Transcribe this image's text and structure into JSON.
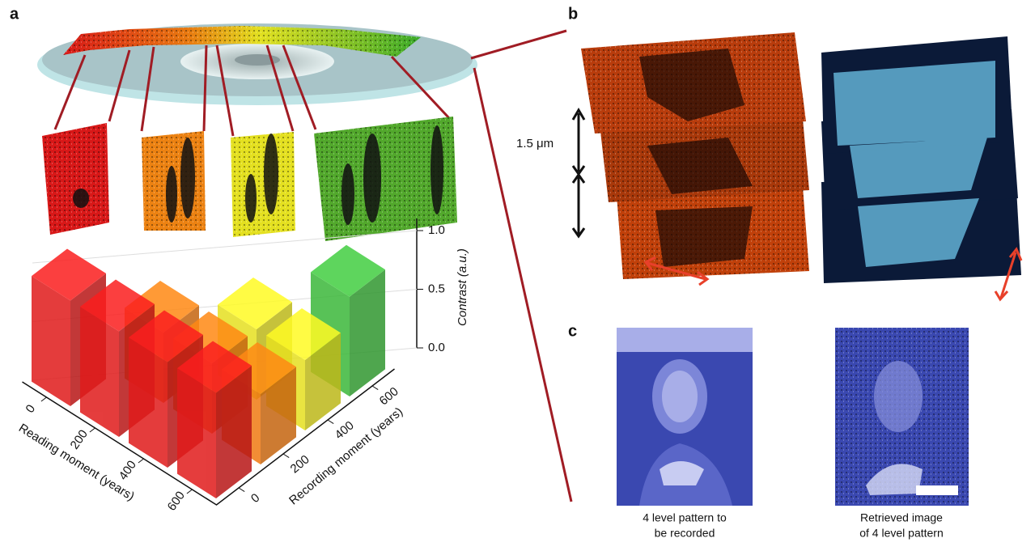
{
  "panels": {
    "a": "a",
    "b": "b",
    "c": "c"
  },
  "chart_data": {
    "type": "bar3d",
    "xlabel": "Reading moment (years)",
    "ylabel": "Recording moment (years)",
    "zlabel": "Contrast (a.u.)",
    "xlim": [
      0,
      600
    ],
    "ylim": [
      0,
      600
    ],
    "zlim": [
      0,
      1
    ],
    "xticks": [
      0,
      200,
      400,
      600
    ],
    "yticks": [
      0,
      200,
      400,
      600
    ],
    "zticks": [
      {
        "value": 0,
        "label": "0.0"
      },
      {
        "value": 0.5,
        "label": "0.5"
      },
      {
        "value": 1,
        "label": "1.0"
      }
    ],
    "series": [
      {
        "y": 0,
        "color": "#e01b1b",
        "x": [
          0,
          200,
          400,
          600
        ],
        "values": [
          0.9,
          0.9,
          0.9,
          0.9
        ]
      },
      {
        "y": 200,
        "color": "#f07a12",
        "x": [
          200,
          400,
          600
        ],
        "values": [
          0.6,
          0.6,
          0.6
        ]
      },
      {
        "y": 400,
        "color": "#e6e020",
        "x": [
          400,
          600
        ],
        "values": [
          0.6,
          0.6
        ]
      },
      {
        "y": 600,
        "color": "#3cb83a",
        "x": [
          600
        ],
        "values": [
          0.85
        ]
      }
    ]
  },
  "panel_b": {
    "scale": "1.5 μm"
  },
  "panel_c": {
    "captions": [
      [
        "4 level pattern to",
        "be recorded"
      ],
      [
        "Retrieved image",
        "of 4 level pattern"
      ]
    ]
  }
}
